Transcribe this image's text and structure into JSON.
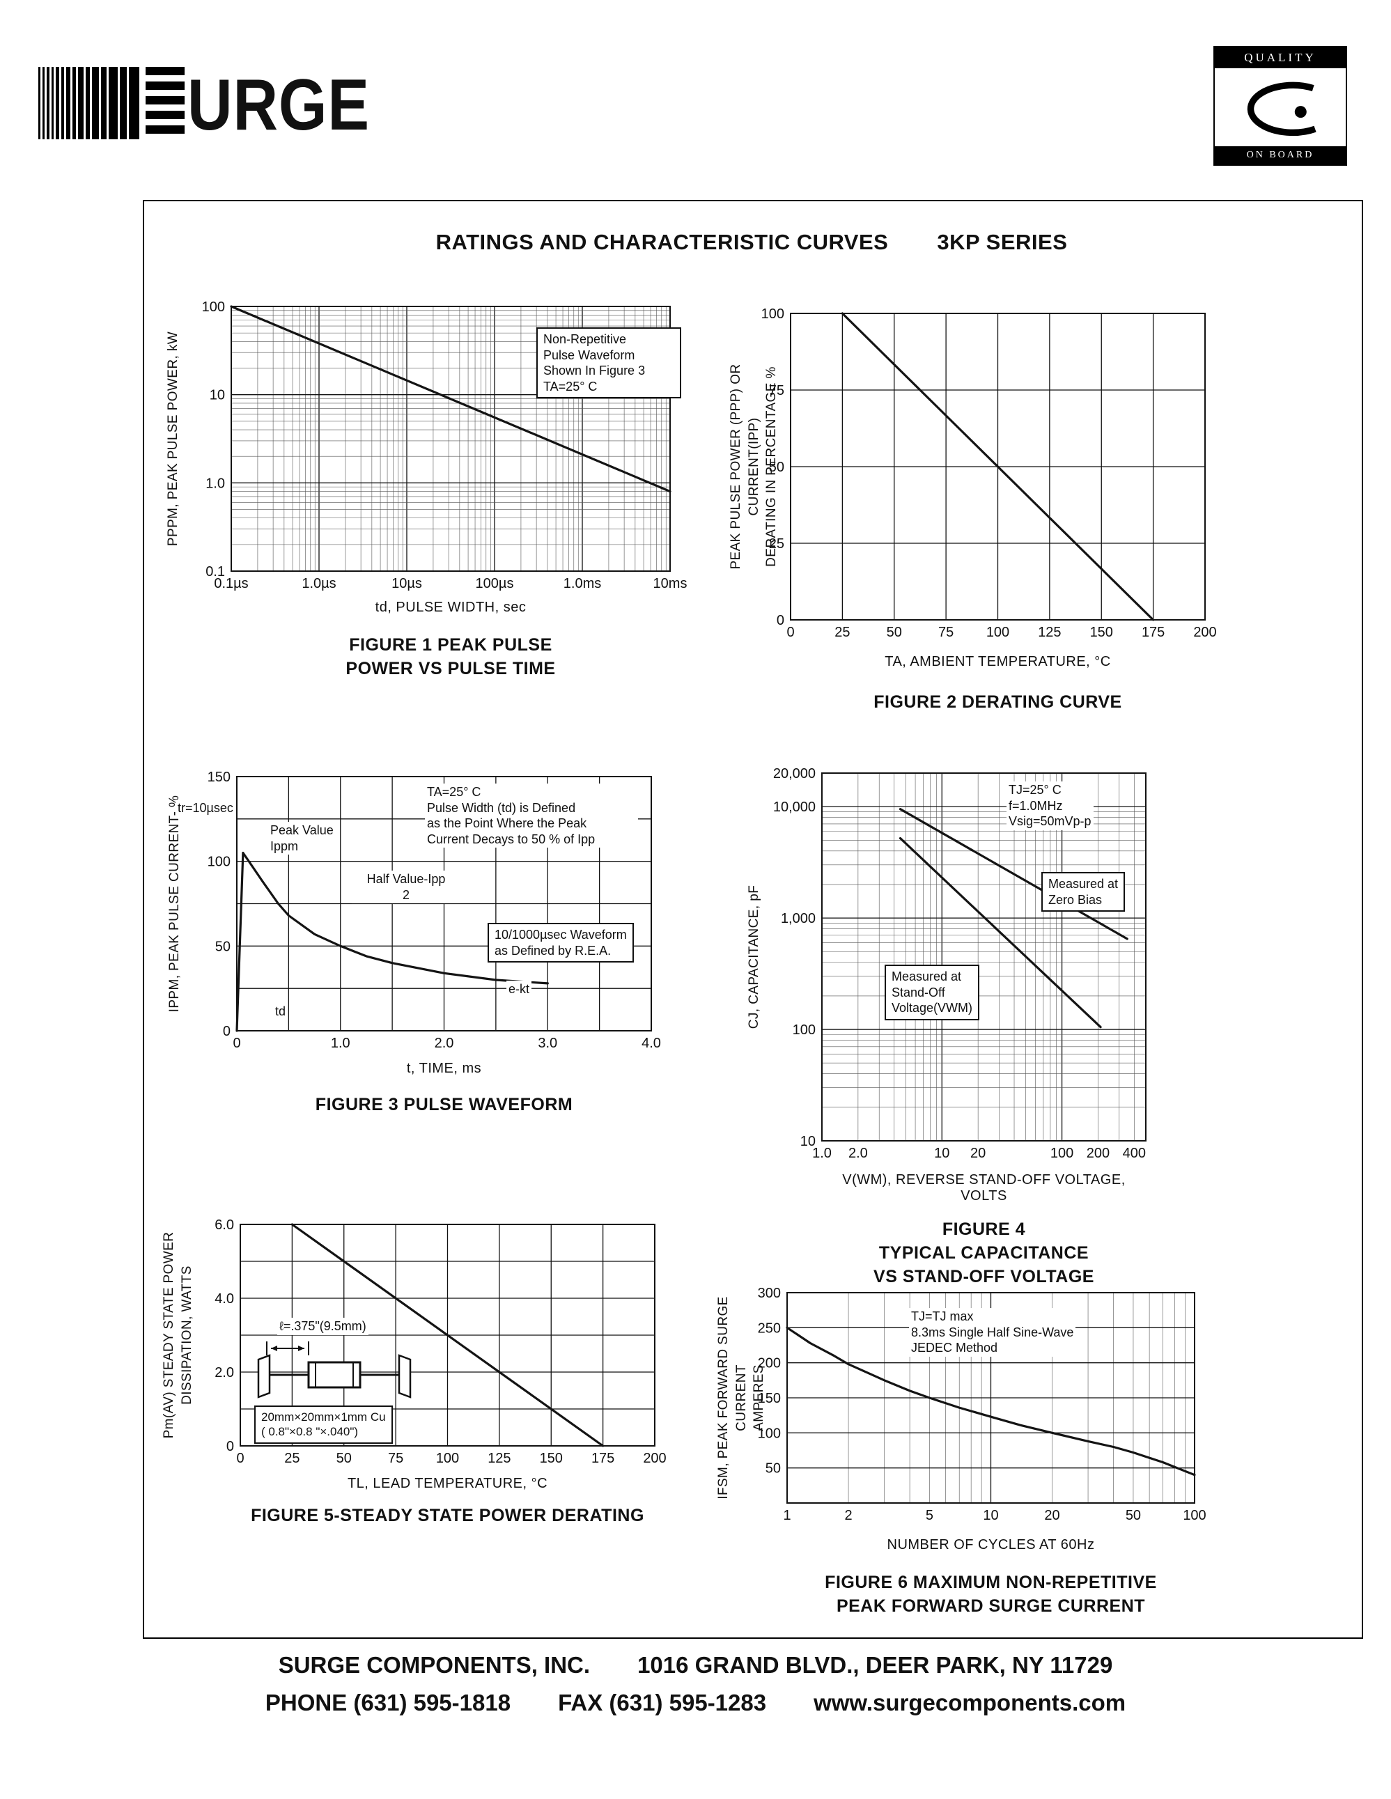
{
  "page": {
    "title": "RATINGS AND CHARACTERISTIC CURVES",
    "series": "3KP SERIES"
  },
  "logo": {
    "wordmark": "URGE",
    "badge_top": "QUALITY",
    "badge_bottom": "ON BOARD"
  },
  "footer": {
    "company": "SURGE COMPONENTS, INC.",
    "address": "1016 GRAND BLVD., DEER PARK, NY  11729",
    "phone": "PHONE (631) 595-1818",
    "fax": "FAX (631) 595-1283",
    "web": "www.surgecomponents.com"
  },
  "chart_data": [
    {
      "id": "fig1",
      "type": "line",
      "caption": "FIGURE 1 PEAK PULSE\nPOWER VS PULSE TIME",
      "xlabel": "td, PULSE WIDTH, sec",
      "ylabel": "PPPM, PEAK PULSE POWER, kW",
      "x": {
        "type": "log",
        "min": 1e-07,
        "max": 0.01,
        "ticks": [
          {
            "v": 1e-07,
            "label": "0.1µs"
          },
          {
            "v": 1e-06,
            "label": "1.0µs"
          },
          {
            "v": 1e-05,
            "label": "10µs"
          },
          {
            "v": 0.0001,
            "label": "100µs"
          },
          {
            "v": 0.001,
            "label": "1.0ms"
          },
          {
            "v": 0.01,
            "label": "10ms"
          }
        ]
      },
      "y": {
        "type": "log",
        "min": 0.1,
        "max": 100,
        "ticks": [
          {
            "v": 100,
            "label": "100"
          },
          {
            "v": 10,
            "label": "10"
          },
          {
            "v": 1,
            "label": "1.0"
          },
          {
            "v": 0.1,
            "label": "0.1"
          }
        ]
      },
      "series": [
        {
          "name": "peak pulse power",
          "points": [
            [
              1e-07,
              100
            ],
            [
              0.01,
              0.8
            ]
          ]
        }
      ],
      "annotations": [
        {
          "text": "Non-Repetitive\nPulse Waveform\nShown In Figure 3\nTA=25° C"
        }
      ]
    },
    {
      "id": "fig2",
      "type": "line",
      "caption": "FIGURE 2 DERATING CURVE",
      "xlabel": "TA, AMBIENT   TEMPERATURE, °C",
      "ylabel": "PEAK PULSE POWER (PPP) OR CURRENT(IPP)\nDERATING IN PERCENTAGE %",
      "x": {
        "type": "linear",
        "min": 0,
        "max": 200,
        "grid": 25,
        "ticks": [
          {
            "v": 0,
            "label": "0"
          },
          {
            "v": 25,
            "label": "25"
          },
          {
            "v": 50,
            "label": "50"
          },
          {
            "v": 75,
            "label": "75"
          },
          {
            "v": 100,
            "label": "100"
          },
          {
            "v": 125,
            "label": "125"
          },
          {
            "v": 150,
            "label": "150"
          },
          {
            "v": 175,
            "label": "175"
          },
          {
            "v": 200,
            "label": "200"
          }
        ]
      },
      "y": {
        "type": "linear",
        "min": 0,
        "max": 100,
        "grid": 25,
        "ticks": [
          {
            "v": 100,
            "label": "100"
          },
          {
            "v": 75,
            "label": "75"
          },
          {
            "v": 50,
            "label": "50"
          },
          {
            "v": 25,
            "label": "25"
          },
          {
            "v": 0,
            "label": "0"
          }
        ]
      },
      "series": [
        {
          "name": "derating",
          "points": [
            [
              25,
              100
            ],
            [
              175,
              0
            ]
          ]
        }
      ],
      "annotations": []
    },
    {
      "id": "fig3",
      "type": "line",
      "caption": "FIGURE 3  PULSE WAVEFORM",
      "xlabel": "t, TIME, ms",
      "ylabel": "IPPM, PEAK PULSE CURRENT- %",
      "x": {
        "type": "linear",
        "min": 0,
        "max": 4,
        "grid": 0.5,
        "ticks": [
          {
            "v": 0,
            "label": "0"
          },
          {
            "v": 1,
            "label": "1.0"
          },
          {
            "v": 2,
            "label": "2.0"
          },
          {
            "v": 3,
            "label": "3.0"
          },
          {
            "v": 4,
            "label": "4.0"
          }
        ]
      },
      "y": {
        "type": "linear",
        "min": 0,
        "max": 150,
        "grid": 25,
        "ticks": [
          {
            "v": 150,
            "label": "150"
          },
          {
            "v": 100,
            "label": "100"
          },
          {
            "v": 50,
            "label": "50"
          },
          {
            "v": 0,
            "label": "0"
          }
        ]
      },
      "series": [
        {
          "name": "pulse waveform",
          "points": [
            [
              0,
              0
            ],
            [
              0.06,
              105
            ],
            [
              0.15,
              97
            ],
            [
              0.25,
              88
            ],
            [
              0.4,
              75
            ],
            [
              0.5,
              68
            ],
            [
              0.75,
              57
            ],
            [
              1.0,
              50
            ],
            [
              1.25,
              44
            ],
            [
              1.5,
              40
            ],
            [
              2.0,
              34
            ],
            [
              2.5,
              30
            ],
            [
              3.0,
              28
            ]
          ]
        }
      ],
      "annotations": [
        {
          "text": "tr=10µsec"
        },
        {
          "text": "Peak Value\nIppm"
        },
        {
          "text": "TA=25° C\nPulse Width (td) is Defined\nas the Point Where the Peak\nCurrent Decays to 50 % of Ipp"
        },
        {
          "text": "Half Value-Ipp\n2"
        },
        {
          "text": "10/1000µsec Waveform\nas Defined by R.E.A."
        },
        {
          "text": "e-kt"
        },
        {
          "text": "td"
        }
      ]
    },
    {
      "id": "fig4",
      "type": "line",
      "caption": "FIGURE 4\nTYPICAL CAPACITANCE\nVS STAND-OFF VOLTAGE",
      "xlabel": "V(WM), REVERSE STAND-OFF VOLTAGE, VOLTS",
      "ylabel": "CJ, CAPACITANCE, pF",
      "x": {
        "type": "log",
        "min": 1,
        "max": 500,
        "ticks": [
          {
            "v": 1,
            "label": "1.0"
          },
          {
            "v": 2,
            "label": "2.0"
          },
          {
            "v": 10,
            "label": "10"
          },
          {
            "v": 20,
            "label": "20"
          },
          {
            "v": 100,
            "label": "100"
          },
          {
            "v": 200,
            "label": "200"
          },
          {
            "v": 400,
            "label": "400"
          }
        ]
      },
      "y": {
        "type": "log",
        "min": 10,
        "max": 20000,
        "ticks": [
          {
            "v": 20000,
            "label": "20,000"
          },
          {
            "v": 10000,
            "label": "10,000"
          },
          {
            "v": 1000,
            "label": "1,000"
          },
          {
            "v": 100,
            "label": "100"
          },
          {
            "v": 10,
            "label": "10"
          }
        ]
      },
      "series": [
        {
          "name": "measured at zero bias",
          "points": [
            [
              4.5,
              9500
            ],
            [
              350,
              650
            ]
          ]
        },
        {
          "name": "measured at stand-off voltage",
          "points": [
            [
              4.5,
              5200
            ],
            [
              210,
              105
            ]
          ]
        }
      ],
      "annotations": [
        {
          "text": "TJ=25° C\nf=1.0MHz\nVsig=50mVp-p"
        },
        {
          "text": "Measured at\nZero Bias"
        },
        {
          "text": "Measured at\nStand-Off\nVoltage(VWM)"
        }
      ]
    },
    {
      "id": "fig5",
      "type": "line",
      "caption": "FIGURE 5-STEADY STATE POWER DERATING",
      "xlabel": "TL, LEAD  TEMPERATURE, °C",
      "ylabel": "Pm(AV) STEADY STATE POWER\nDISSIPATION, WATTS",
      "x": {
        "type": "linear",
        "min": 0,
        "max": 200,
        "grid": 25,
        "ticks": [
          {
            "v": 0,
            "label": "0"
          },
          {
            "v": 25,
            "label": "25"
          },
          {
            "v": 50,
            "label": "50"
          },
          {
            "v": 75,
            "label": "75"
          },
          {
            "v": 100,
            "label": "100"
          },
          {
            "v": 125,
            "label": "125"
          },
          {
            "v": 150,
            "label": "150"
          },
          {
            "v": 175,
            "label": "175"
          },
          {
            "v": 200,
            "label": "200"
          }
        ]
      },
      "y": {
        "type": "linear",
        "min": 0,
        "max": 6,
        "grid": 1,
        "ticks": [
          {
            "v": 6,
            "label": "6.0"
          },
          {
            "v": 4,
            "label": "4.0"
          },
          {
            "v": 2,
            "label": "2.0"
          },
          {
            "v": 0,
            "label": "0"
          }
        ]
      },
      "series": [
        {
          "name": "steady state power derating",
          "points": [
            [
              25,
              6
            ],
            [
              175,
              0
            ]
          ]
        }
      ],
      "annotations": [
        {
          "text": "ℓ=.375\"(9.5mm)"
        },
        {
          "text": "20mm×20mm×1mm Cu\n( 0.8\"×0.8 \"×.040\")"
        }
      ]
    },
    {
      "id": "fig6",
      "type": "line",
      "caption": "FIGURE 6  MAXIMUM NON-REPETITIVE\nPEAK FORWARD SURGE CURRENT",
      "xlabel": "NUMBER  OF  CYCLES  AT  60Hz",
      "ylabel": "IFSM, PEAK FORWARD SURGE CURRENT\nAMPERES",
      "x": {
        "type": "log",
        "min": 1,
        "max": 100,
        "ticks": [
          {
            "v": 1,
            "label": "1"
          },
          {
            "v": 2,
            "label": "2"
          },
          {
            "v": 5,
            "label": "5"
          },
          {
            "v": 10,
            "label": "10"
          },
          {
            "v": 20,
            "label": "20"
          },
          {
            "v": 50,
            "label": "50"
          },
          {
            "v": 100,
            "label": "100"
          }
        ]
      },
      "y": {
        "type": "linear",
        "min": 0,
        "max": 300,
        "grid": 50,
        "ticks": [
          {
            "v": 300,
            "label": "300"
          },
          {
            "v": 250,
            "label": "250"
          },
          {
            "v": 200,
            "label": "200"
          },
          {
            "v": 150,
            "label": "150"
          },
          {
            "v": 100,
            "label": "100"
          },
          {
            "v": 50,
            "label": "50"
          }
        ]
      },
      "series": [
        {
          "name": "max peak forward surge current",
          "points": [
            [
              1,
              250
            ],
            [
              1.3,
              228
            ],
            [
              1.7,
              210
            ],
            [
              2,
              198
            ],
            [
              3,
              175
            ],
            [
              4,
              160
            ],
            [
              5,
              150
            ],
            [
              7,
              136
            ],
            [
              10,
              123
            ],
            [
              14,
              111
            ],
            [
              20,
              100
            ],
            [
              30,
              88
            ],
            [
              40,
              80
            ],
            [
              50,
              72
            ],
            [
              70,
              58
            ],
            [
              100,
              40
            ]
          ]
        }
      ],
      "annotations": [
        {
          "text": "TJ=TJ max\n8.3ms Single Half Sine-Wave\nJEDEC Method"
        }
      ]
    }
  ]
}
